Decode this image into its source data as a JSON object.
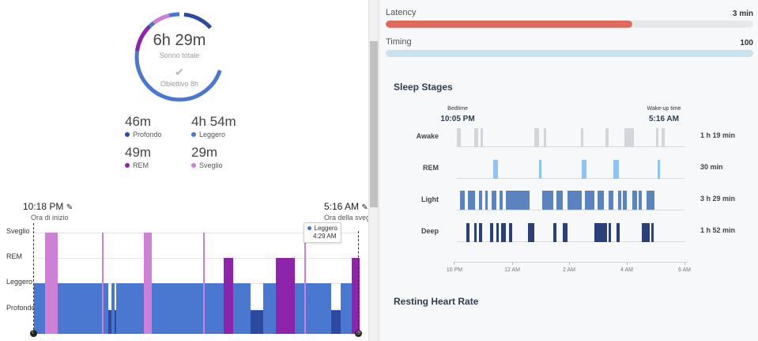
{
  "left": {
    "total_sleep": "6h 29m",
    "total_sleep_label": "Sonno totale",
    "goal_label": "Obiettivo 8h",
    "stats": [
      {
        "value": "46m",
        "label": "Profondo",
        "color": "#2e4a9e"
      },
      {
        "value": "4h 54m",
        "label": "Leggero",
        "color": "#4a78d1"
      },
      {
        "value": "49m",
        "label": "REM",
        "color": "#8e24aa"
      },
      {
        "value": "29m",
        "label": "Sveglio",
        "color": "#d07fd6"
      }
    ],
    "start_time": "10:18 PM",
    "start_label": "Ora di inizio",
    "end_time": "5:16 AM",
    "end_label": "Ora della sveg",
    "y_labels": [
      "Sveglio",
      "REM",
      "Leggero",
      "Profondo"
    ],
    "tooltip": {
      "stage": "Leggero",
      "time": "4:29 AM"
    }
  },
  "right": {
    "latency": {
      "label": "Latency",
      "value": "3 min",
      "fill": 0.67,
      "color": "#e06a5c"
    },
    "timing": {
      "label": "Timing",
      "value": "100",
      "fill": 1.0,
      "color": "#c9e2f0"
    },
    "sleep_stages_title": "Sleep Stages",
    "bedtime_label": "Bedtime",
    "bedtime": "10:05 PM",
    "wakeup_label": "Wake-up time",
    "wakeup": "5:16 AM",
    "stages": [
      {
        "name": "Awake",
        "duration": "1 h 19 min",
        "color": "#d3d5da"
      },
      {
        "name": "REM",
        "duration": "30 min",
        "color": "#8ec3f5"
      },
      {
        "name": "Light",
        "duration": "3 h 29 min",
        "color": "#5b83bf"
      },
      {
        "name": "Deep",
        "duration": "1 h 52 min",
        "color": "#2b3f78"
      }
    ],
    "x_ticks": [
      "10 PM",
      "12 AM",
      "2 AM",
      "4 AM",
      "6 AM"
    ],
    "resting_hr_title": "Resting Heart Rate"
  }
}
